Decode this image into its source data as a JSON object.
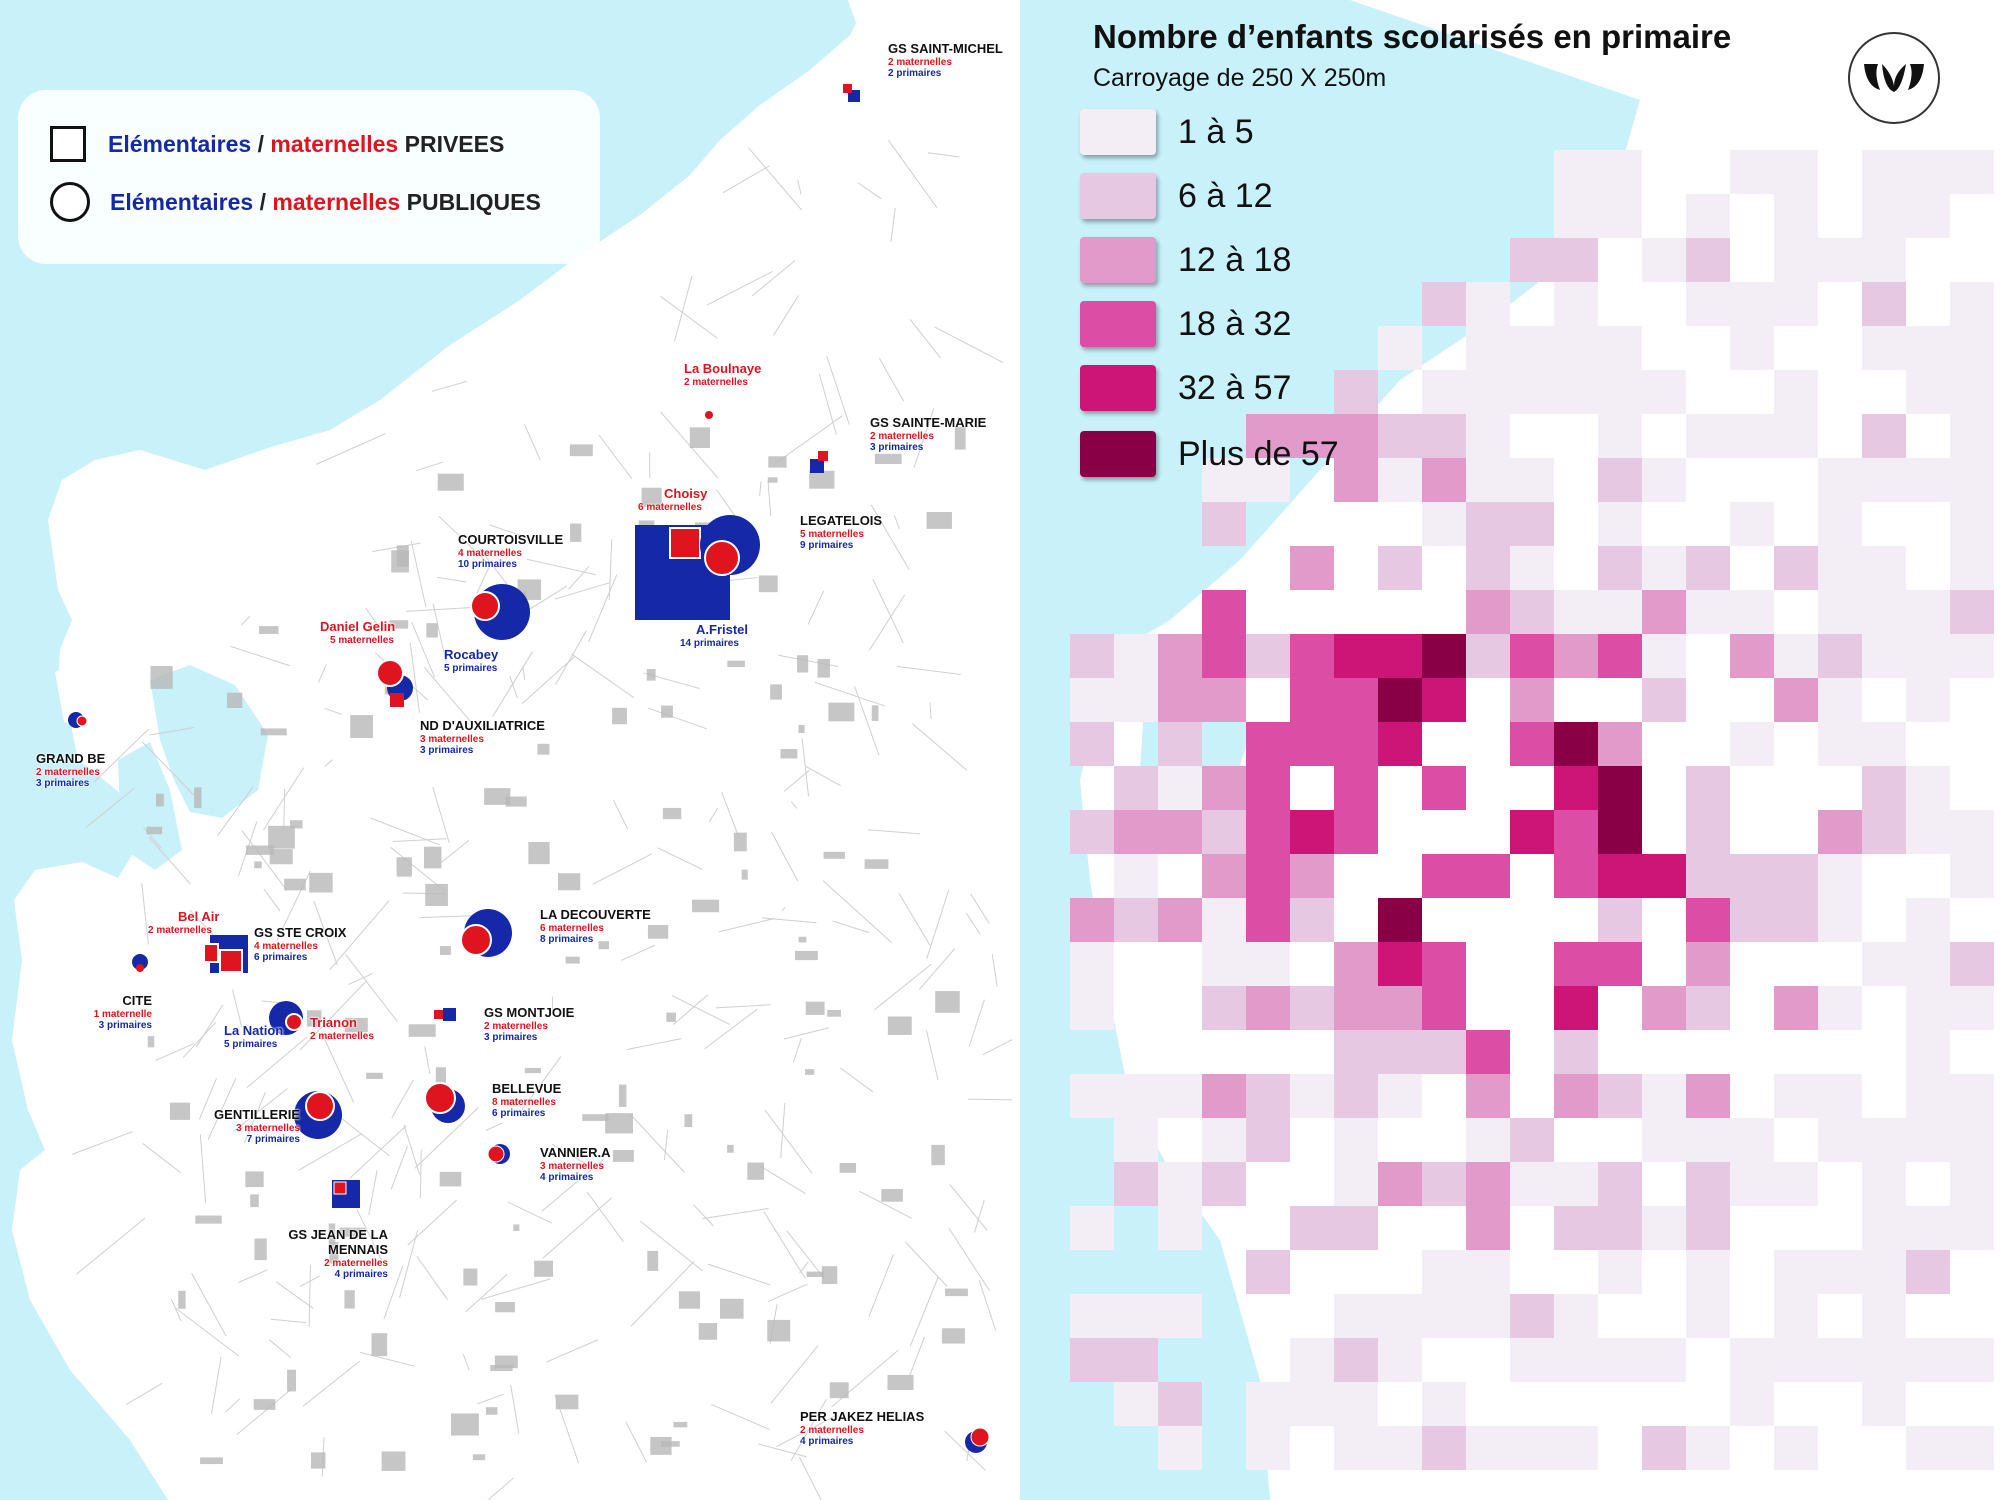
{
  "legend_symbols": {
    "private": {
      "elem": "Elémentaires",
      "sep": " / ",
      "mat": "maternelles",
      "kind": " PRIVEES"
    },
    "public": {
      "elem": "Elémentaires",
      "sep": " / ",
      "mat": "maternelles",
      "kind": " PUBLIQUES"
    }
  },
  "heatmap": {
    "title": "Nombre d’enfants scolarisés en primaire",
    "subtitle": "Carroyage de 250 X 250m",
    "classes": [
      {
        "label": "1 à 5",
        "color": "#f3eef5"
      },
      {
        "label": "6 à 12",
        "color": "#e6c8e2"
      },
      {
        "label": "12 à 18",
        "color": "#e29acb"
      },
      {
        "label": "18 à 32",
        "color": "#dc4da5"
      },
      {
        "label": "32 à 57",
        "color": "#cc1577"
      },
      {
        "label": "Plus de 57",
        "color": "#8a0047"
      }
    ]
  },
  "schools": [
    {
      "name": "GS SAINT-MICHEL",
      "mat": "2 maternelles",
      "pri": "2 primaires",
      "name_color": "dark"
    },
    {
      "name": "La Boulnaye",
      "mat": "2 maternelles",
      "pri": "",
      "name_color": "red"
    },
    {
      "name": "GS SAINTE-MARIE",
      "mat": "2 maternelles",
      "pri": "3 primaires",
      "name_color": "dark"
    },
    {
      "name": "Choisy",
      "mat": "6 maternelles",
      "pri": "",
      "name_color": "red"
    },
    {
      "name": "LEGATELOIS",
      "mat": "5 maternelles",
      "pri": "9 primaires",
      "name_color": "dark"
    },
    {
      "name": "COURTOISVILLE",
      "mat": "4 maternelles",
      "pri": "10 primaires",
      "name_color": "dark"
    },
    {
      "name": "Daniel Gelin",
      "mat": "5 maternelles",
      "pri": "",
      "name_color": "red"
    },
    {
      "name": "Rocabey",
      "mat": "",
      "pri": "5 primaires",
      "name_color": "blue"
    },
    {
      "name": "A.Fristel",
      "mat": "",
      "pri": "14 primaires",
      "name_color": "blue"
    },
    {
      "name": "ND D'AUXILIATRICE",
      "mat": "3 maternelles",
      "pri": "3 primaires",
      "name_color": "dark"
    },
    {
      "name": "GRAND BE",
      "mat": "2 maternelles",
      "pri": "3 primaires",
      "name_color": "dark"
    },
    {
      "name": "LA DECOUVERTE",
      "mat": "6 maternelles",
      "pri": "8 primaires",
      "name_color": "dark"
    },
    {
      "name": "Bel Air",
      "mat": "2 maternelles",
      "pri": "",
      "name_color": "red"
    },
    {
      "name": "GS STE CROIX",
      "mat": "4 maternelles",
      "pri": "6 primaires",
      "name_color": "dark"
    },
    {
      "name": "CITE",
      "mat": "1 maternelle",
      "pri": "3 primaires",
      "name_color": "dark"
    },
    {
      "name": "La Nation",
      "mat": "",
      "pri": "5 primaires",
      "name_color": "blue"
    },
    {
      "name": "Trianon",
      "mat": "2 maternelles",
      "pri": "",
      "name_color": "red"
    },
    {
      "name": "GS MONTJOIE",
      "mat": "2 maternelles",
      "pri": "3 primaires",
      "name_color": "dark"
    },
    {
      "name": "BELLEVUE",
      "mat": "8 maternelles",
      "pri": "6 primaires",
      "name_color": "dark"
    },
    {
      "name": "GENTILLERIE",
      "mat": "3 maternelles",
      "pri": "7 primaires",
      "name_color": "dark"
    },
    {
      "name": "VANNIER.A",
      "mat": "3 maternelles",
      "pri": "4 primaires",
      "name_color": "dark"
    },
    {
      "name": "GS JEAN DE LA",
      "name2": "MENNAIS",
      "mat": "2 maternelles",
      "pri": "4 primaires",
      "name_color": "dark"
    },
    {
      "name": "PER JAKEZ HELIAS",
      "mat": "2 maternelles",
      "pri": "4 primaires",
      "name_color": "dark"
    }
  ],
  "colors": {
    "sea": "#c9f1fa",
    "land": "#ffffff",
    "public_blue": "#1428a8",
    "public_red": "#e0141e",
    "building": "#b8b8b8"
  },
  "icons": {
    "logo": "stylized-w-logo"
  }
}
